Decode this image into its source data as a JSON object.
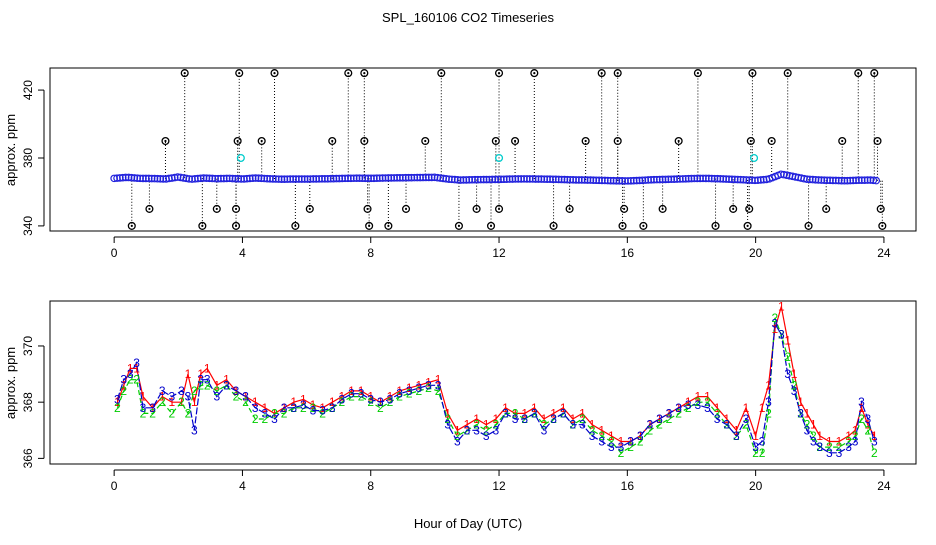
{
  "figure": {
    "title": "SPL_160106  CO2 Timeseries",
    "xlabel": "Hour of Day (UTC)"
  },
  "chart_data": [
    {
      "type": "scatter",
      "title": "",
      "ylabel": "approx. ppm",
      "xlim": [
        -2,
        25
      ],
      "ylim": [
        337,
        433
      ],
      "xticks": [
        0,
        4,
        8,
        12,
        16,
        20,
        24
      ],
      "yticks": [
        340,
        380,
        420
      ],
      "baseline": {
        "x": [
          0.0,
          0.4,
          0.8,
          1.2,
          1.6,
          2.0,
          2.4,
          2.8,
          3.2,
          3.6,
          4.0,
          4.4,
          4.8,
          5.2,
          5.6,
          6.0,
          6.4,
          6.8,
          7.2,
          7.6,
          8.0,
          8.4,
          8.8,
          9.2,
          9.6,
          10.0,
          10.4,
          10.8,
          11.2,
          11.6,
          12.0,
          12.4,
          12.8,
          13.2,
          13.6,
          14.0,
          14.4,
          14.8,
          15.2,
          15.6,
          16.0,
          16.4,
          16.8,
          17.2,
          17.6,
          18.0,
          18.4,
          18.8,
          19.2,
          19.6,
          20.0,
          20.4,
          20.8,
          21.2,
          21.6,
          22.0,
          22.4,
          22.8,
          23.2,
          23.6,
          23.8
        ],
        "y": [
          368.0,
          368.6,
          368.0,
          367.9,
          367.6,
          368.8,
          367.5,
          368.2,
          367.8,
          368.0,
          367.6,
          368.2,
          367.8,
          367.5,
          367.6,
          367.6,
          367.7,
          367.8,
          368.0,
          368.1,
          368.0,
          368.2,
          368.3,
          368.4,
          368.5,
          368.6,
          367.6,
          367.0,
          367.2,
          367.3,
          367.4,
          367.6,
          367.7,
          367.6,
          367.5,
          367.3,
          367.1,
          367.0,
          366.8,
          366.6,
          366.5,
          366.8,
          367.2,
          367.4,
          367.6,
          367.9,
          368.0,
          367.8,
          367.5,
          367.2,
          366.8,
          367.5,
          370.5,
          369.0,
          367.5,
          367.0,
          366.8,
          366.6,
          366.9,
          367.0,
          366.6
        ]
      },
      "cyan_points": {
        "x": [
          3.95,
          12.0,
          19.95
        ],
        "y": [
          380,
          380,
          380
        ]
      },
      "spike_high": {
        "x": [
          2.2,
          3.9,
          5.0,
          7.3,
          7.8,
          10.2,
          12.0,
          13.1,
          15.2,
          15.7,
          18.2,
          19.9,
          21.0,
          23.2,
          23.7
        ],
        "y": [
          430,
          430,
          430,
          430,
          430,
          430,
          430,
          430,
          430,
          430,
          430,
          430,
          430,
          430,
          430
        ]
      },
      "spike_mid": {
        "x": [
          1.6,
          3.85,
          4.6,
          6.8,
          7.8,
          9.7,
          11.9,
          12.5,
          14.7,
          15.7,
          17.6,
          19.85,
          20.5,
          22.7,
          23.8
        ],
        "y": [
          390,
          390,
          390,
          390,
          390,
          390,
          390,
          390,
          390,
          390,
          390,
          390,
          390,
          390,
          390
        ]
      },
      "spike_lowmid": {
        "x": [
          1.1,
          3.2,
          3.8,
          6.1,
          7.9,
          9.1,
          11.3,
          12.0,
          14.2,
          15.9,
          17.1,
          19.3,
          19.8,
          22.2,
          23.9
        ],
        "y": [
          350,
          350,
          350,
          350,
          350,
          350,
          350,
          350,
          350,
          350,
          350,
          350,
          350,
          350,
          350
        ]
      },
      "spike_low": {
        "x": [
          0.55,
          2.75,
          3.8,
          5.65,
          7.95,
          8.55,
          10.75,
          11.75,
          13.7,
          15.85,
          16.5,
          18.75,
          19.75,
          21.65,
          23.95
        ],
        "y": [
          340,
          340,
          340,
          340,
          340,
          340,
          340,
          340,
          340,
          340,
          340,
          340,
          340,
          340,
          340
        ]
      }
    },
    {
      "type": "scatter",
      "title": "",
      "ylabel": "approx. ppm",
      "xlim": [
        -2,
        25
      ],
      "ylim": [
        365.8,
        371.6
      ],
      "xticks": [
        0,
        4,
        8,
        12,
        16,
        20,
        24
      ],
      "yticks": [
        366,
        368,
        370
      ],
      "series": [
        {
          "label": "1",
          "color": "#ff0000",
          "x": [
            0.1,
            0.3,
            0.5,
            0.7,
            0.9,
            1.2,
            1.5,
            1.8,
            2.1,
            2.3,
            2.5,
            2.7,
            2.9,
            3.2,
            3.5,
            3.8,
            4.1,
            4.4,
            4.7,
            5.0,
            5.3,
            5.6,
            5.9,
            6.2,
            6.5,
            6.8,
            7.1,
            7.4,
            7.7,
            8.0,
            8.3,
            8.6,
            8.9,
            9.2,
            9.5,
            9.8,
            10.1,
            10.4,
            10.7,
            11.0,
            11.3,
            11.6,
            11.9,
            12.2,
            12.5,
            12.8,
            13.1,
            13.4,
            13.7,
            14.0,
            14.3,
            14.6,
            14.9,
            15.2,
            15.5,
            15.8,
            16.1,
            16.4,
            16.7,
            17.0,
            17.3,
            17.6,
            17.9,
            18.2,
            18.5,
            18.8,
            19.1,
            19.4,
            19.7,
            20.0,
            20.2,
            20.4,
            20.6,
            20.8,
            21.0,
            21.2,
            21.4,
            21.6,
            21.8,
            22.0,
            22.3,
            22.6,
            22.9,
            23.1,
            23.3,
            23.5,
            23.7
          ],
          "y": [
            368.0,
            368.6,
            369.2,
            369.2,
            368.2,
            367.8,
            368.2,
            368.0,
            368.0,
            369.0,
            368.0,
            369.0,
            369.2,
            368.6,
            368.8,
            368.4,
            368.2,
            368.0,
            367.8,
            367.6,
            367.8,
            368.0,
            368.1,
            367.9,
            367.8,
            368.0,
            368.2,
            368.4,
            368.4,
            368.2,
            368.0,
            368.2,
            368.4,
            368.5,
            368.6,
            368.7,
            368.8,
            367.6,
            367.0,
            367.2,
            367.4,
            367.2,
            367.4,
            367.8,
            367.6,
            367.6,
            367.8,
            367.4,
            367.6,
            367.8,
            367.4,
            367.6,
            367.2,
            367.0,
            366.8,
            366.6,
            366.6,
            366.8,
            367.2,
            367.4,
            367.6,
            367.8,
            368.0,
            368.2,
            368.2,
            367.8,
            367.4,
            367.0,
            367.8,
            366.8,
            367.8,
            368.6,
            370.6,
            371.4,
            370.2,
            369.0,
            368.0,
            367.6,
            367.2,
            366.8,
            366.6,
            366.6,
            366.8,
            367.0,
            367.8,
            367.2,
            366.8
          ]
        },
        {
          "label": "2",
          "color": "#00cc00",
          "x": [
            0.1,
            0.3,
            0.5,
            0.7,
            0.9,
            1.2,
            1.5,
            1.8,
            2.1,
            2.3,
            2.5,
            2.7,
            2.9,
            3.2,
            3.5,
            3.8,
            4.1,
            4.4,
            4.7,
            5.0,
            5.3,
            5.6,
            5.9,
            6.2,
            6.5,
            6.8,
            7.1,
            7.4,
            7.7,
            8.0,
            8.3,
            8.6,
            8.9,
            9.2,
            9.5,
            9.8,
            10.1,
            10.4,
            10.7,
            11.0,
            11.3,
            11.6,
            11.9,
            12.2,
            12.5,
            12.8,
            13.1,
            13.4,
            13.7,
            14.0,
            14.3,
            14.6,
            14.9,
            15.2,
            15.5,
            15.8,
            16.1,
            16.4,
            16.7,
            17.0,
            17.3,
            17.6,
            17.9,
            18.2,
            18.5,
            18.8,
            19.1,
            19.4,
            19.7,
            20.0,
            20.2,
            20.4,
            20.6,
            20.8,
            21.0,
            21.2,
            21.4,
            21.6,
            21.8,
            22.0,
            22.3,
            22.6,
            22.9,
            23.1,
            23.3,
            23.5,
            23.7
          ],
          "y": [
            367.8,
            368.4,
            368.8,
            368.8,
            367.6,
            367.6,
            368.0,
            367.6,
            368.0,
            367.6,
            368.4,
            368.6,
            368.6,
            368.4,
            368.6,
            368.2,
            368.0,
            367.4,
            367.4,
            367.6,
            367.6,
            367.8,
            367.8,
            367.8,
            367.6,
            367.8,
            368.0,
            368.2,
            368.2,
            368.0,
            367.8,
            368.0,
            368.2,
            368.3,
            368.4,
            368.5,
            368.4,
            367.4,
            366.8,
            367.0,
            367.2,
            367.0,
            367.2,
            367.6,
            367.6,
            367.4,
            367.6,
            367.2,
            367.4,
            367.6,
            367.2,
            367.4,
            367.0,
            366.8,
            366.6,
            366.2,
            366.4,
            366.6,
            367.0,
            367.2,
            367.4,
            367.6,
            367.8,
            368.0,
            368.0,
            367.6,
            367.2,
            366.8,
            367.2,
            366.2,
            366.2,
            367.6,
            371.0,
            370.4,
            369.6,
            368.6,
            367.6,
            367.2,
            366.8,
            366.4,
            366.4,
            366.4,
            366.6,
            366.8,
            367.4,
            367.0,
            366.2
          ]
        },
        {
          "label": "3",
          "color": "#0000cc",
          "x": [
            0.1,
            0.3,
            0.5,
            0.7,
            0.9,
            1.2,
            1.5,
            1.8,
            2.1,
            2.3,
            2.5,
            2.7,
            2.9,
            3.2,
            3.5,
            3.8,
            4.1,
            4.4,
            4.7,
            5.0,
            5.3,
            5.6,
            5.9,
            6.2,
            6.5,
            6.8,
            7.1,
            7.4,
            7.7,
            8.0,
            8.3,
            8.6,
            8.9,
            9.2,
            9.5,
            9.8,
            10.1,
            10.4,
            10.7,
            11.0,
            11.3,
            11.6,
            11.9,
            12.2,
            12.5,
            12.8,
            13.1,
            13.4,
            13.7,
            14.0,
            14.3,
            14.6,
            14.9,
            15.2,
            15.5,
            15.8,
            16.1,
            16.4,
            16.7,
            17.0,
            17.3,
            17.6,
            17.9,
            18.2,
            18.5,
            18.8,
            19.1,
            19.4,
            19.7,
            20.0,
            20.2,
            20.4,
            20.6,
            20.8,
            21.0,
            21.2,
            21.4,
            21.6,
            21.8,
            22.0,
            22.3,
            22.6,
            22.9,
            23.1,
            23.3,
            23.5,
            23.7
          ],
          "y": [
            368.1,
            368.8,
            369.0,
            369.4,
            367.8,
            367.8,
            368.4,
            368.2,
            368.4,
            368.2,
            367.0,
            368.8,
            368.8,
            368.2,
            368.6,
            368.4,
            368.2,
            367.8,
            367.6,
            367.4,
            367.8,
            367.8,
            367.9,
            367.7,
            367.7,
            367.8,
            368.1,
            368.3,
            368.3,
            368.1,
            368.0,
            368.1,
            368.3,
            368.4,
            368.5,
            368.6,
            368.6,
            367.2,
            366.6,
            367.0,
            367.0,
            366.8,
            367.0,
            367.6,
            367.4,
            367.4,
            367.6,
            367.0,
            367.4,
            367.6,
            367.2,
            367.2,
            366.8,
            366.6,
            366.4,
            366.4,
            366.6,
            366.8,
            367.2,
            367.4,
            367.6,
            367.8,
            367.9,
            367.9,
            367.8,
            367.4,
            367.2,
            366.8,
            367.4,
            366.4,
            366.6,
            368.0,
            370.8,
            370.4,
            369.0,
            368.4,
            367.6,
            367.0,
            366.6,
            366.4,
            366.2,
            366.2,
            366.4,
            366.6,
            368.0,
            367.4,
            366.6
          ]
        }
      ]
    }
  ]
}
